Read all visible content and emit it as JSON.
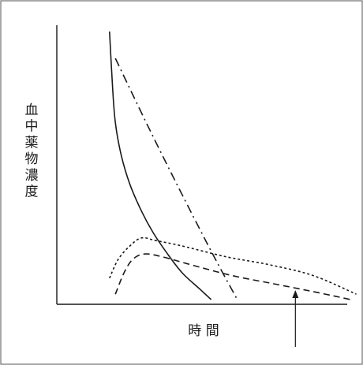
{
  "chart_data": {
    "type": "line",
    "title": "",
    "xlabel": "時 間",
    "ylabel": "血中薬物濃度",
    "x_axis": {
      "ticks": false,
      "range": [
        0,
        100
      ]
    },
    "y_axis": {
      "ticks": false,
      "range": [
        0,
        100
      ]
    },
    "grid": false,
    "legend": "none",
    "series": [
      {
        "style": "solid",
        "points": [
          [
            10,
            100
          ],
          [
            11,
            80
          ],
          [
            12,
            66
          ],
          [
            14,
            54
          ],
          [
            17,
            43
          ],
          [
            21,
            33
          ],
          [
            25,
            25
          ],
          [
            30,
            17
          ],
          [
            35,
            10
          ],
          [
            41,
            4
          ],
          [
            45,
            0
          ]
        ]
      },
      {
        "style": "dash-dot",
        "points": [
          [
            12,
            90
          ],
          [
            24,
            63
          ],
          [
            36,
            37
          ],
          [
            46,
            16
          ],
          [
            54,
            0
          ]
        ]
      },
      {
        "style": "dotted",
        "points": [
          [
            10,
            8
          ],
          [
            13,
            15
          ],
          [
            17,
            20
          ],
          [
            21,
            23
          ],
          [
            26,
            22
          ],
          [
            35,
            20
          ],
          [
            50,
            16
          ],
          [
            65,
            13
          ],
          [
            80,
            9
          ],
          [
            95,
            2
          ]
        ]
      },
      {
        "style": "dashed",
        "points": [
          [
            12,
            2
          ],
          [
            15,
            10
          ],
          [
            18,
            15
          ],
          [
            22,
            17
          ],
          [
            28,
            16
          ],
          [
            38,
            13
          ],
          [
            52,
            9
          ],
          [
            66,
            6
          ],
          [
            80,
            3
          ],
          [
            93,
            0
          ]
        ]
      }
    ],
    "annotations": [
      {
        "type": "arrow",
        "x": 74,
        "direction": "up"
      }
    ],
    "colors": {
      "line": "#1a1a1a",
      "frame": "#6e6e6e",
      "background": "#ffffff"
    }
  }
}
